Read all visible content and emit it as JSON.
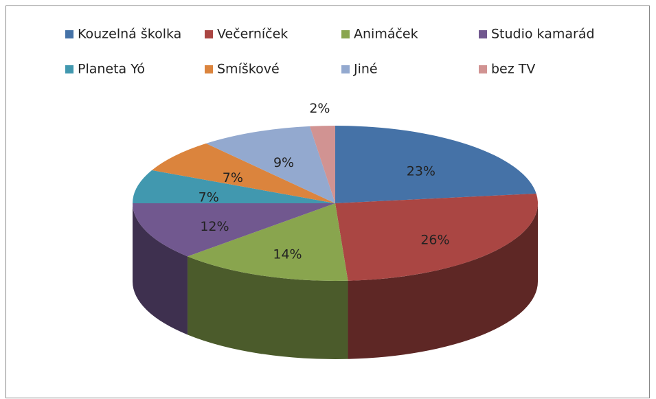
{
  "chart_data": {
    "type": "pie",
    "categories": [
      "Kouzelná školka",
      "Večerníček",
      "Animáček",
      "Studio kamarád",
      "Planeta Yó",
      "Smíškové",
      "Jiné",
      "bez TV"
    ],
    "values": [
      23,
      26,
      14,
      12,
      7,
      7,
      9,
      2
    ],
    "value_labels": [
      "23%",
      "26%",
      "14%",
      "12%",
      "7%",
      "7%",
      "9%",
      "2%"
    ],
    "colors": [
      "#4572a7",
      "#aa4643",
      "#89a54e",
      "#71588f",
      "#4198af",
      "#db843d",
      "#93a9cf",
      "#d19392"
    ]
  }
}
